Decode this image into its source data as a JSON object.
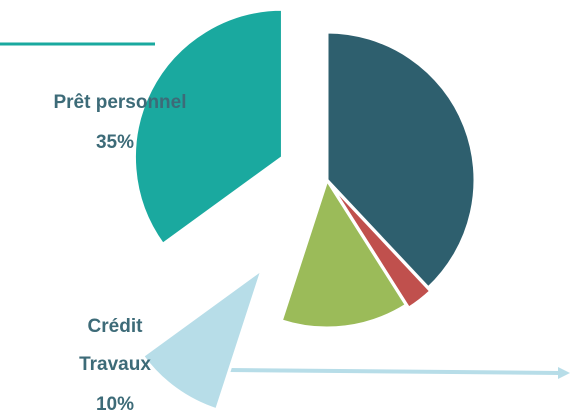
{
  "chart_data": {
    "type": "pie",
    "categories": [
      null,
      null,
      null,
      "Crédit Travaux",
      "Prêt personnel"
    ],
    "values": [
      38,
      3,
      14,
      10,
      35
    ],
    "value_labels": [
      null,
      null,
      null,
      "10%",
      "35%"
    ],
    "colors": [
      "#2e5f6e",
      "#c0504d",
      "#9bbb59",
      "#b7dde8",
      "#1aa99f"
    ]
  }
}
